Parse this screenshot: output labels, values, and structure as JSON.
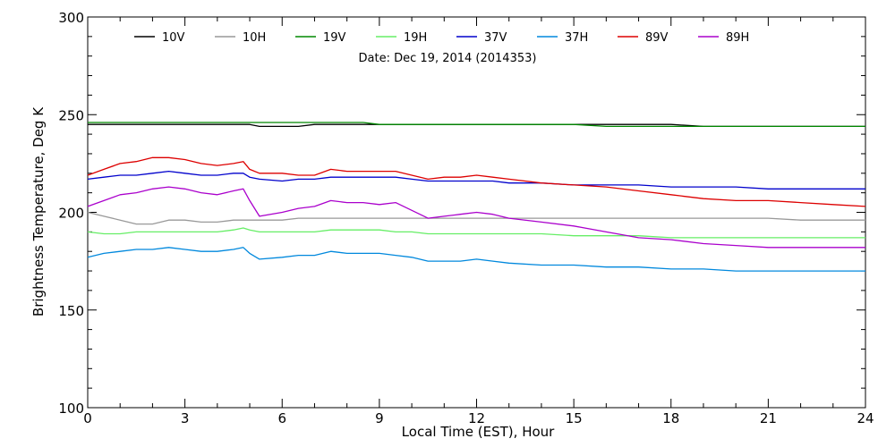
{
  "chart_data": {
    "type": "line",
    "title": "Date: Dec 19, 2014 (2014353)",
    "xlabel": "Local Time (EST), Hour",
    "ylabel": "Brightness Temperature, Deg K",
    "xlim": [
      0,
      24
    ],
    "ylim": [
      100,
      300
    ],
    "xticks": [
      "0",
      "3",
      "6",
      "9",
      "12",
      "15",
      "18",
      "21",
      "24"
    ],
    "yticks": [
      "100",
      "150",
      "200",
      "250",
      "300"
    ],
    "legend_position": "top",
    "x": [
      0,
      0.5,
      1,
      1.5,
      2,
      2.5,
      3,
      3.5,
      4,
      4.5,
      4.8,
      5,
      5.3,
      6,
      6.5,
      7,
      7.5,
      8,
      8.5,
      9,
      9.5,
      10,
      10.5,
      11,
      11.5,
      12,
      12.5,
      13,
      14,
      15,
      16,
      17,
      18,
      19,
      20,
      21,
      22,
      23,
      24
    ],
    "series": [
      {
        "name": "10V",
        "color": "#000000",
        "values": [
          245,
          245,
          245,
          245,
          245,
          245,
          245,
          245,
          245,
          245,
          245,
          245,
          244,
          244,
          244,
          245,
          245,
          245,
          245,
          245,
          245,
          245,
          245,
          245,
          245,
          245,
          245,
          245,
          245,
          245,
          245,
          245,
          245,
          244,
          244,
          244,
          244,
          244,
          244
        ]
      },
      {
        "name": "10H",
        "color": "#999999",
        "values": [
          200,
          198,
          196,
          194,
          194,
          196,
          196,
          195,
          195,
          196,
          196,
          196,
          196,
          196,
          197,
          197,
          197,
          197,
          197,
          197,
          197,
          197,
          197,
          197,
          197,
          197,
          197,
          197,
          197,
          197,
          197,
          197,
          197,
          197,
          197,
          197,
          196,
          196,
          196
        ]
      },
      {
        "name": "19V",
        "color": "#008800",
        "values": [
          246,
          246,
          246,
          246,
          246,
          246,
          246,
          246,
          246,
          246,
          246,
          246,
          246,
          246,
          246,
          246,
          246,
          246,
          246,
          245,
          245,
          245,
          245,
          245,
          245,
          245,
          245,
          245,
          245,
          245,
          244,
          244,
          244,
          244,
          244,
          244,
          244,
          244,
          244
        ]
      },
      {
        "name": "19H",
        "color": "#66ee66",
        "values": [
          190,
          189,
          189,
          190,
          190,
          190,
          190,
          190,
          190,
          191,
          192,
          191,
          190,
          190,
          190,
          190,
          191,
          191,
          191,
          191,
          190,
          190,
          189,
          189,
          189,
          189,
          189,
          189,
          189,
          188,
          188,
          188,
          187,
          187,
          187,
          187,
          187,
          187,
          187
        ]
      },
      {
        "name": "37V",
        "color": "#0000cc",
        "values": [
          217,
          218,
          219,
          219,
          220,
          221,
          220,
          219,
          219,
          220,
          220,
          218,
          217,
          216,
          217,
          217,
          218,
          218,
          218,
          218,
          218,
          217,
          216,
          216,
          216,
          216,
          216,
          215,
          215,
          214,
          214,
          214,
          213,
          213,
          213,
          212,
          212,
          212,
          212
        ]
      },
      {
        "name": "37H",
        "color": "#0088dd",
        "values": [
          177,
          179,
          180,
          181,
          181,
          182,
          181,
          180,
          180,
          181,
          182,
          179,
          176,
          177,
          178,
          178,
          180,
          179,
          179,
          179,
          178,
          177,
          175,
          175,
          175,
          176,
          175,
          174,
          173,
          173,
          172,
          172,
          171,
          171,
          170,
          170,
          170,
          170,
          170
        ]
      },
      {
        "name": "89V",
        "color": "#dd0000",
        "values": [
          219,
          222,
          225,
          226,
          228,
          228,
          227,
          225,
          224,
          225,
          226,
          222,
          220,
          220,
          219,
          219,
          222,
          221,
          221,
          221,
          221,
          219,
          217,
          218,
          218,
          219,
          218,
          217,
          215,
          214,
          213,
          211,
          209,
          207,
          206,
          206,
          205,
          204,
          203
        ]
      },
      {
        "name": "89H",
        "color": "#aa00cc",
        "values": [
          203,
          206,
          209,
          210,
          212,
          213,
          212,
          210,
          209,
          211,
          212,
          206,
          198,
          200,
          202,
          203,
          206,
          205,
          205,
          204,
          205,
          201,
          197,
          198,
          199,
          200,
          199,
          197,
          195,
          193,
          190,
          187,
          186,
          184,
          183,
          182,
          182,
          182,
          182
        ]
      }
    ]
  }
}
